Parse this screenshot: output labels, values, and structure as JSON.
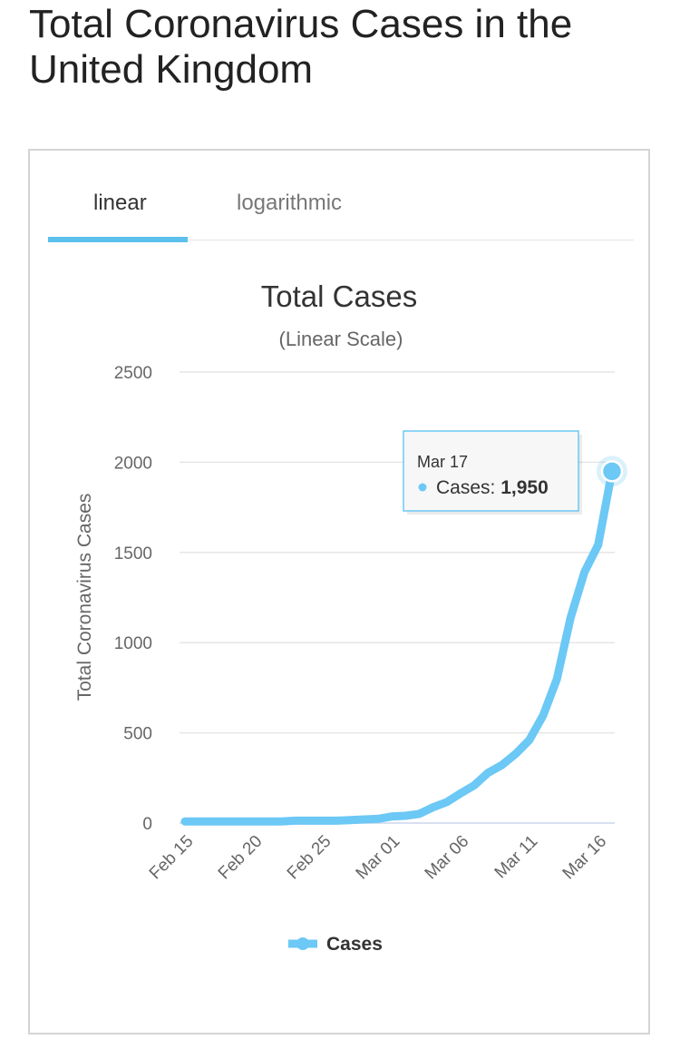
{
  "page": {
    "title": "Total Coronavirus Cases in the United Kingdom"
  },
  "tabs": [
    {
      "label": "linear",
      "active": true
    },
    {
      "label": "logarithmic",
      "active": false
    }
  ],
  "colors": {
    "series": "#6cc8f5",
    "tab_accent": "#5cc0ec",
    "tooltip_border": "#6cc8f5"
  },
  "tooltip": {
    "date": "Mar 17",
    "series_label": "Cases: ",
    "value": "1,950"
  },
  "chart_data": {
    "type": "line",
    "title": "Total Cases",
    "subtitle": "(Linear Scale)",
    "ylabel": "Total Coronavirus Cases",
    "xlabel": "",
    "ylim": [
      0,
      2500
    ],
    "yticks": [
      "0",
      "500",
      "1000",
      "1500",
      "2000",
      "2500"
    ],
    "ytick_values": [
      0,
      500,
      1000,
      1500,
      2000,
      2500
    ],
    "grid": true,
    "legend_position": "bottom-center",
    "x_tick_labels": [
      "Feb 15",
      "Feb 20",
      "Feb 25",
      "Mar 01",
      "Mar 06",
      "Mar 11",
      "Mar 16"
    ],
    "x_tick_indices": [
      0,
      5,
      10,
      15,
      20,
      25,
      30
    ],
    "x": [
      "Feb 15",
      "Feb 16",
      "Feb 17",
      "Feb 18",
      "Feb 19",
      "Feb 20",
      "Feb 21",
      "Feb 22",
      "Feb 23",
      "Feb 24",
      "Feb 25",
      "Feb 26",
      "Feb 27",
      "Feb 28",
      "Feb 29",
      "Mar 01",
      "Mar 02",
      "Mar 03",
      "Mar 04",
      "Mar 05",
      "Mar 06",
      "Mar 07",
      "Mar 08",
      "Mar 09",
      "Mar 10",
      "Mar 11",
      "Mar 12",
      "Mar 13",
      "Mar 14",
      "Mar 15",
      "Mar 16",
      "Mar 17"
    ],
    "series": [
      {
        "name": "Cases",
        "values": [
          9,
          9,
          9,
          9,
          9,
          9,
          9,
          9,
          13,
          13,
          13,
          13,
          16,
          20,
          23,
          36,
          40,
          51,
          87,
          116,
          164,
          209,
          278,
          321,
          383,
          460,
          596,
          798,
          1140,
          1391,
          1543,
          1950
        ]
      }
    ]
  }
}
